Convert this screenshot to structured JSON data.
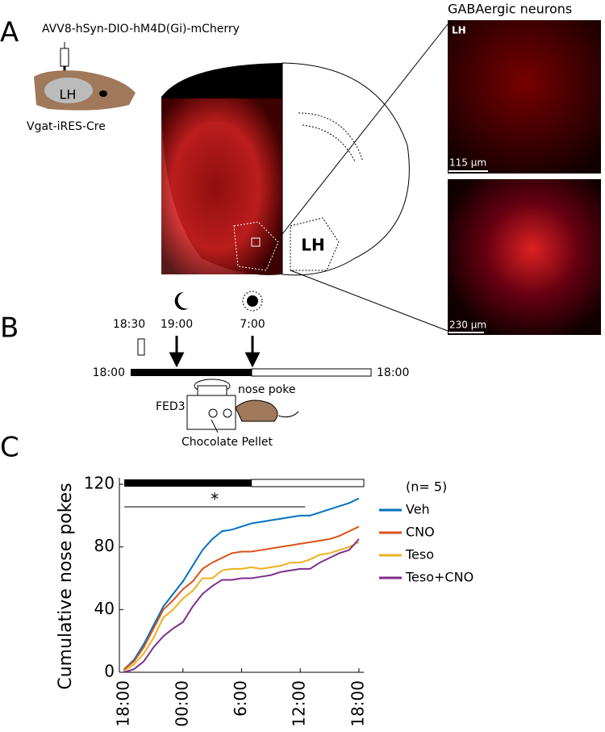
{
  "panel_a": {
    "label": "A",
    "virus": "AVV8-hSyn-DIO-hM4D(Gi)-mCherry",
    "mouse_region": "LH",
    "mouse_line": "Vgat-iRES-Cre",
    "atlas_region": "LH",
    "micrograph_title": "GABAergic neurons",
    "micrograph_region": "LH",
    "scale_top": "115 µm",
    "scale_bottom": "230 µm"
  },
  "panel_b": {
    "label": "B",
    "injection_time": "18:30",
    "dark_onset": "19:00",
    "light_onset": "7:00",
    "start": "18:00",
    "end": "18:00",
    "action": "nose poke",
    "device": "FED3",
    "pellet": "Chocolate Pellet"
  },
  "panel_c": {
    "label": "C"
  },
  "chart_data": {
    "type": "line",
    "ylabel": "Cumulative nose pokes",
    "legend_title": "(n= 5)",
    "legend": "right",
    "x": [
      0,
      1,
      2,
      3,
      4,
      5,
      6,
      7,
      8,
      9,
      10,
      11,
      12,
      13,
      14,
      15,
      16,
      17,
      18,
      19,
      20,
      21,
      22,
      23,
      24
    ],
    "xlim": [
      -0.5,
      24.5
    ],
    "xticks": [
      {
        "value": 0,
        "label": "18:00"
      },
      {
        "value": 6,
        "label": "00:00"
      },
      {
        "value": 12,
        "label": "6:00"
      },
      {
        "value": 18,
        "label": "12:00"
      },
      {
        "value": 24,
        "label": "18:00"
      }
    ],
    "ylim": [
      0,
      120
    ],
    "yticks": [
      0,
      40,
      80,
      120
    ],
    "dark_period": [
      0,
      13
    ],
    "light_period": [
      13,
      24.5
    ],
    "significance": {
      "label": "*",
      "x": [
        0,
        18.5
      ]
    },
    "series": [
      {
        "name": "Veh",
        "color": "#0072bd",
        "values": [
          2,
          8,
          18,
          30,
          42,
          50,
          58,
          68,
          78,
          85,
          90,
          91,
          93,
          95,
          96,
          97,
          98,
          99,
          100,
          100,
          102,
          104,
          106,
          108,
          111
        ]
      },
      {
        "name": "CNO",
        "color": "#d95319",
        "values": [
          2,
          7,
          16,
          28,
          40,
          46,
          53,
          58,
          66,
          70,
          73,
          76,
          77,
          77,
          78,
          79,
          80,
          81,
          82,
          83,
          84,
          85,
          87,
          90,
          93
        ]
      },
      {
        "name": "Teso",
        "color": "#edb120",
        "values": [
          1,
          5,
          12,
          22,
          35,
          40,
          47,
          52,
          60,
          60,
          65,
          66,
          66,
          67,
          66,
          67,
          68,
          70,
          70,
          72,
          75,
          76,
          78,
          80,
          83
        ]
      },
      {
        "name": "Teso+CNO",
        "color": "#7e2f8e",
        "values": [
          0,
          2,
          7,
          16,
          23,
          28,
          32,
          42,
          50,
          55,
          59,
          59,
          60,
          60,
          61,
          62,
          64,
          65,
          66,
          66,
          70,
          73,
          76,
          78,
          85
        ]
      }
    ]
  }
}
